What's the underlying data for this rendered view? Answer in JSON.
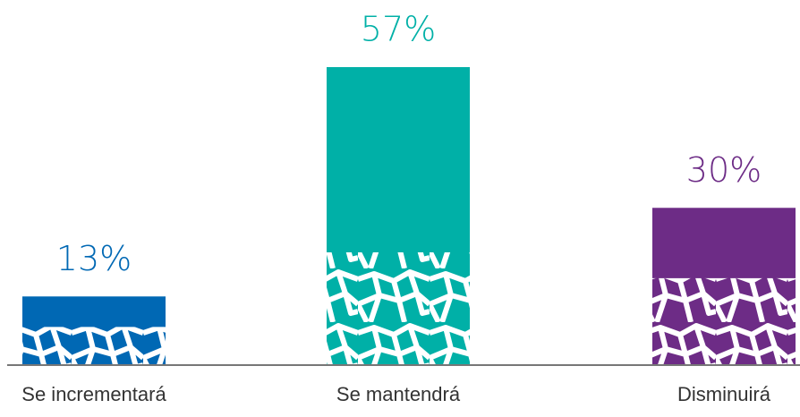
{
  "chart_data": {
    "type": "bar",
    "categories": [
      "Se incrementará",
      "Se mantendrá",
      "Disminuirá"
    ],
    "values": [
      13,
      57,
      30
    ],
    "value_labels": [
      "13%",
      "57%",
      "30%"
    ],
    "colors": [
      "#0068b4",
      "#00b0a7",
      "#6d2c86"
    ]
  }
}
